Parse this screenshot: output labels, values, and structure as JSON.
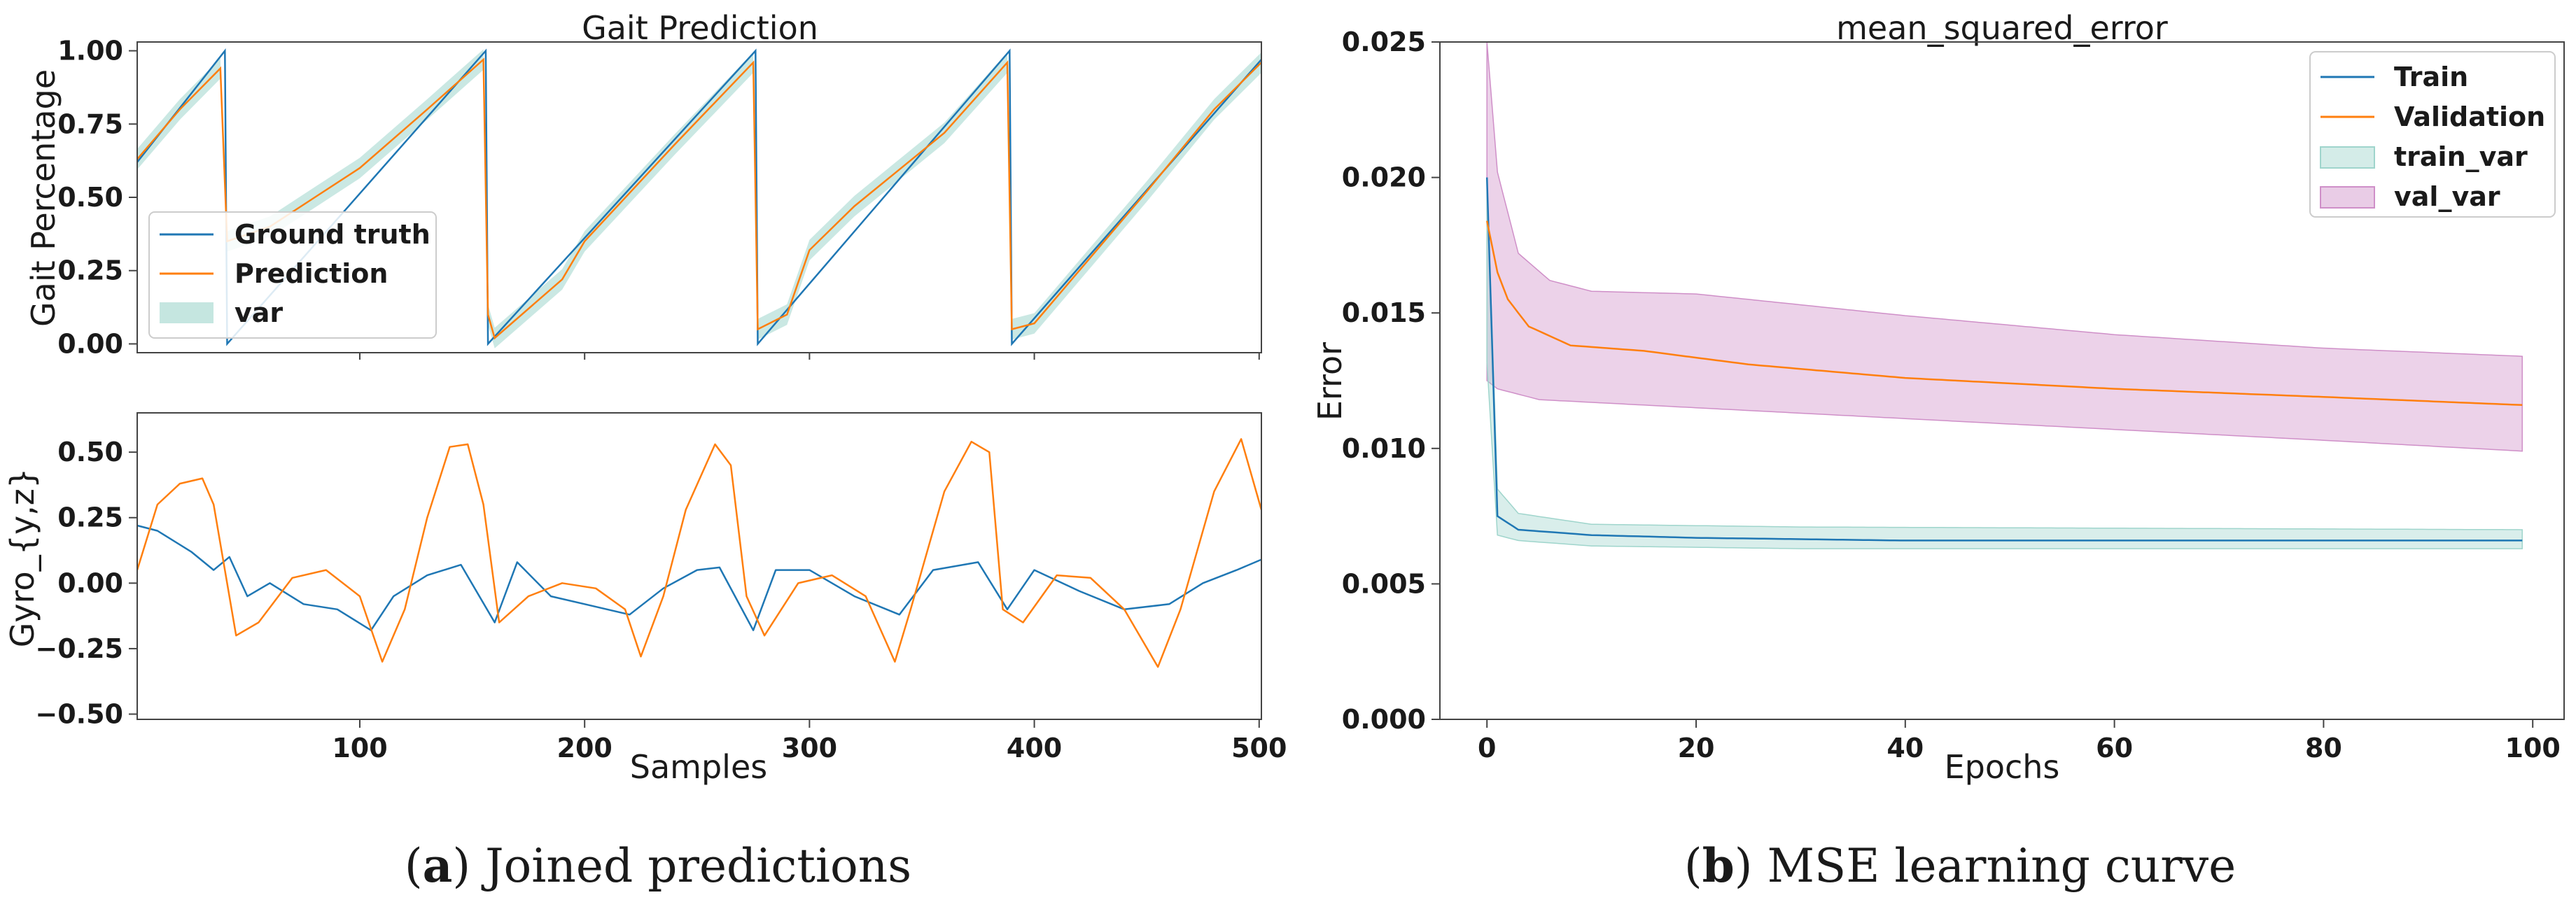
{
  "colors": {
    "blue": "#1f77b4",
    "orange": "#ff7f0e",
    "teal_fill": "#9fd5cc",
    "pink_fill": "#cf8fc8"
  },
  "captions": {
    "a": {
      "open": "(",
      "letter": "a",
      "text": ") Joined predictions"
    },
    "b": {
      "open": "(",
      "letter": "b",
      "text": ") MSE learning curve"
    }
  },
  "chart_data": [
    {
      "id": "gait",
      "type": "line",
      "title": "Gait Prediction",
      "xlabel": "",
      "ylabel": "Gait Percentage",
      "xlim": [
        1,
        501
      ],
      "ylim": [
        -0.03,
        1.03
      ],
      "yticks": [
        0.0,
        0.25,
        0.5,
        0.75,
        1.0
      ],
      "ytick_labels": [
        "0.00",
        "0.25",
        "0.50",
        "0.75",
        "1.00"
      ],
      "legend": {
        "position": "center-left",
        "entries": [
          "Ground truth",
          "Prediction",
          "var"
        ]
      },
      "series": [
        {
          "name": "Ground truth",
          "color": "blue",
          "points": [
            [
              1,
              0.62
            ],
            [
              40,
              1.0
            ],
            [
              41,
              0.0
            ],
            [
              156,
              1.0
            ],
            [
              157,
              0.0
            ],
            [
              276,
              1.0
            ],
            [
              277,
              0.0
            ],
            [
              389,
              1.0
            ],
            [
              390,
              0.0
            ],
            [
              501,
              0.97
            ]
          ]
        },
        {
          "name": "Prediction",
          "color": "orange",
          "points": [
            [
              1,
              0.63
            ],
            [
              20,
              0.8
            ],
            [
              38,
              0.94
            ],
            [
              41,
              0.35
            ],
            [
              60,
              0.4
            ],
            [
              80,
              0.5
            ],
            [
              100,
              0.6
            ],
            [
              130,
              0.8
            ],
            [
              155,
              0.97
            ],
            [
              157,
              0.1
            ],
            [
              160,
              0.02
            ],
            [
              190,
              0.22
            ],
            [
              200,
              0.35
            ],
            [
              240,
              0.68
            ],
            [
              275,
              0.96
            ],
            [
              277,
              0.05
            ],
            [
              290,
              0.1
            ],
            [
              300,
              0.32
            ],
            [
              320,
              0.47
            ],
            [
              360,
              0.72
            ],
            [
              388,
              0.96
            ],
            [
              390,
              0.05
            ],
            [
              400,
              0.07
            ],
            [
              420,
              0.25
            ],
            [
              450,
              0.52
            ],
            [
              480,
              0.8
            ],
            [
              501,
              0.96
            ]
          ]
        }
      ],
      "band": {
        "name": "var",
        "color": "teal_fill",
        "width": 0.035
      }
    },
    {
      "id": "gyro",
      "type": "line",
      "title": "",
      "xlabel": "Samples",
      "ylabel": "Gyro_{y,z}",
      "xlim": [
        1,
        501
      ],
      "ylim": [
        -0.52,
        0.65
      ],
      "xticks": [
        100,
        200,
        300,
        400,
        500
      ],
      "yticks": [
        -0.5,
        -0.25,
        0.0,
        0.25,
        0.5
      ],
      "ytick_labels": [
        "−0.50",
        "−0.25",
        "0.00",
        "0.25",
        "0.50"
      ],
      "series": [
        {
          "name": "gyro_y",
          "color": "blue",
          "points": [
            [
              1,
              0.22
            ],
            [
              10,
              0.2
            ],
            [
              25,
              0.12
            ],
            [
              35,
              0.05
            ],
            [
              42,
              0.1
            ],
            [
              50,
              -0.05
            ],
            [
              60,
              0.0
            ],
            [
              75,
              -0.08
            ],
            [
              90,
              -0.1
            ],
            [
              105,
              -0.18
            ],
            [
              115,
              -0.05
            ],
            [
              130,
              0.03
            ],
            [
              145,
              0.07
            ],
            [
              160,
              -0.15
            ],
            [
              170,
              0.08
            ],
            [
              185,
              -0.05
            ],
            [
              200,
              -0.08
            ],
            [
              220,
              -0.12
            ],
            [
              235,
              -0.02
            ],
            [
              250,
              0.05
            ],
            [
              260,
              0.06
            ],
            [
              275,
              -0.18
            ],
            [
              285,
              0.05
            ],
            [
              300,
              0.05
            ],
            [
              320,
              -0.05
            ],
            [
              340,
              -0.12
            ],
            [
              355,
              0.05
            ],
            [
              375,
              0.08
            ],
            [
              388,
              -0.1
            ],
            [
              400,
              0.05
            ],
            [
              420,
              -0.03
            ],
            [
              440,
              -0.1
            ],
            [
              460,
              -0.08
            ],
            [
              475,
              0.0
            ],
            [
              490,
              0.05
            ],
            [
              501,
              0.09
            ]
          ]
        },
        {
          "name": "gyro_z",
          "color": "orange",
          "points": [
            [
              1,
              0.05
            ],
            [
              10,
              0.3
            ],
            [
              20,
              0.38
            ],
            [
              30,
              0.4
            ],
            [
              35,
              0.3
            ],
            [
              45,
              -0.2
            ],
            [
              55,
              -0.15
            ],
            [
              70,
              0.02
            ],
            [
              85,
              0.05
            ],
            [
              100,
              -0.05
            ],
            [
              110,
              -0.3
            ],
            [
              120,
              -0.1
            ],
            [
              130,
              0.25
            ],
            [
              140,
              0.52
            ],
            [
              148,
              0.53
            ],
            [
              155,
              0.3
            ],
            [
              162,
              -0.15
            ],
            [
              175,
              -0.05
            ],
            [
              190,
              0.0
            ],
            [
              205,
              -0.02
            ],
            [
              218,
              -0.1
            ],
            [
              225,
              -0.28
            ],
            [
              235,
              -0.05
            ],
            [
              245,
              0.28
            ],
            [
              258,
              0.53
            ],
            [
              265,
              0.45
            ],
            [
              272,
              -0.05
            ],
            [
              280,
              -0.2
            ],
            [
              295,
              0.0
            ],
            [
              310,
              0.03
            ],
            [
              325,
              -0.05
            ],
            [
              338,
              -0.3
            ],
            [
              345,
              -0.1
            ],
            [
              360,
              0.35
            ],
            [
              372,
              0.54
            ],
            [
              380,
              0.5
            ],
            [
              386,
              -0.1
            ],
            [
              395,
              -0.15
            ],
            [
              410,
              0.03
            ],
            [
              425,
              0.02
            ],
            [
              440,
              -0.1
            ],
            [
              455,
              -0.32
            ],
            [
              465,
              -0.1
            ],
            [
              480,
              0.35
            ],
            [
              492,
              0.55
            ],
            [
              501,
              0.28
            ]
          ]
        }
      ]
    },
    {
      "id": "mse",
      "type": "line",
      "title": "mean_squared_error",
      "xlabel": "Epochs",
      "ylabel": "Error",
      "xlim": [
        -4.5,
        103
      ],
      "ylim": [
        0.0,
        0.025
      ],
      "xticks": [
        0,
        20,
        40,
        60,
        80,
        100
      ],
      "yticks": [
        0.0,
        0.005,
        0.01,
        0.015,
        0.02,
        0.025
      ],
      "ytick_labels": [
        "0.000",
        "0.005",
        "0.010",
        "0.015",
        "0.020",
        "0.025"
      ],
      "legend": {
        "position": "top-right",
        "entries": [
          "Train",
          "Validation",
          "train_var",
          "val_var"
        ]
      },
      "series": [
        {
          "name": "Train",
          "color": "blue",
          "points": [
            [
              0,
              0.02
            ],
            [
              1,
              0.0075
            ],
            [
              3,
              0.007
            ],
            [
              10,
              0.0068
            ],
            [
              20,
              0.0067
            ],
            [
              40,
              0.0066
            ],
            [
              60,
              0.0066
            ],
            [
              80,
              0.0066
            ],
            [
              99,
              0.0066
            ]
          ]
        },
        {
          "name": "Validation",
          "color": "orange",
          "points": [
            [
              0,
              0.0184
            ],
            [
              1,
              0.0165
            ],
            [
              2,
              0.0155
            ],
            [
              4,
              0.0145
            ],
            [
              8,
              0.0138
            ],
            [
              15,
              0.0136
            ],
            [
              25,
              0.0131
            ],
            [
              40,
              0.0126
            ],
            [
              60,
              0.0122
            ],
            [
              80,
              0.0119
            ],
            [
              99,
              0.0116
            ]
          ]
        }
      ],
      "bands": [
        {
          "name": "train_var",
          "color": "teal_fill",
          "lower": [
            [
              0,
              0.0132
            ],
            [
              1,
              0.0068
            ],
            [
              3,
              0.0066
            ],
            [
              10,
              0.0064
            ],
            [
              30,
              0.0063
            ],
            [
              99,
              0.0063
            ]
          ],
          "upper": [
            [
              0,
              0.02
            ],
            [
              1,
              0.0085
            ],
            [
              3,
              0.0076
            ],
            [
              10,
              0.0072
            ],
            [
              30,
              0.0071
            ],
            [
              99,
              0.007
            ]
          ]
        },
        {
          "name": "val_var",
          "color": "pink_fill",
          "lower": [
            [
              0,
              0.0125
            ],
            [
              1,
              0.0122
            ],
            [
              5,
              0.0118
            ],
            [
              20,
              0.0115
            ],
            [
              40,
              0.0111
            ],
            [
              60,
              0.0107
            ],
            [
              80,
              0.0103
            ],
            [
              99,
              0.0099
            ]
          ],
          "upper": [
            [
              0,
              0.025
            ],
            [
              1,
              0.0202
            ],
            [
              3,
              0.0172
            ],
            [
              6,
              0.0162
            ],
            [
              10,
              0.0158
            ],
            [
              20,
              0.0157
            ],
            [
              40,
              0.0149
            ],
            [
              60,
              0.0142
            ],
            [
              80,
              0.0137
            ],
            [
              99,
              0.0134
            ]
          ]
        }
      ]
    }
  ]
}
